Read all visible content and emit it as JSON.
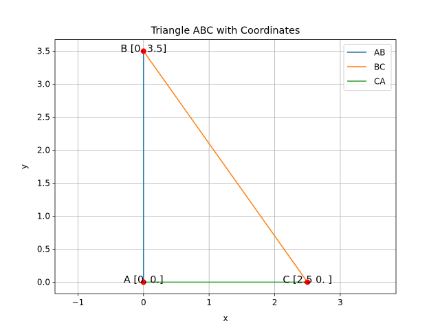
{
  "chart_data": {
    "type": "line",
    "title": "Triangle ABC with Coordinates",
    "xlabel": "x",
    "ylabel": "y",
    "xlim": [
      -1.35,
      3.85
    ],
    "ylim": [
      -0.175,
      3.675
    ],
    "xticks": [
      -1,
      0,
      1,
      2,
      3
    ],
    "xtick_labels": [
      "−1",
      "0",
      "1",
      "2",
      "3"
    ],
    "yticks": [
      0.0,
      0.5,
      1.0,
      1.5,
      2.0,
      2.5,
      3.0,
      3.5
    ],
    "ytick_labels": [
      "0.0",
      "0.5",
      "1.0",
      "1.5",
      "2.0",
      "2.5",
      "3.0",
      "3.5"
    ],
    "grid": true,
    "legend_position": "top-right",
    "series": [
      {
        "name": "AB",
        "color": "#1f77b4",
        "x": [
          0,
          0
        ],
        "y": [
          0,
          3.5
        ]
      },
      {
        "name": "BC",
        "color": "#ff7f0e",
        "x": [
          0,
          2.5
        ],
        "y": [
          3.5,
          0
        ]
      },
      {
        "name": "CA",
        "color": "#2ca02c",
        "x": [
          2.5,
          0
        ],
        "y": [
          0,
          0
        ]
      }
    ],
    "points": [
      {
        "label": "A [0. 0.]",
        "x": 0,
        "y": 0
      },
      {
        "label": "B [0.  3.5]",
        "x": 0,
        "y": 3.5
      },
      {
        "label": "C [2.5 0. ]",
        "x": 2.5,
        "y": 0
      }
    ],
    "point_color": "#ff0000"
  }
}
